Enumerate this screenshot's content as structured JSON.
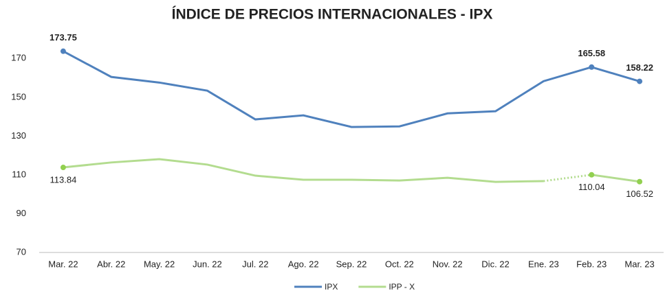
{
  "chart_data": {
    "type": "line",
    "title": "ÍNDICE DE PRECIOS INTERNACIONALES - IPX",
    "categories": [
      "Mar. 22",
      "Abr. 22",
      "May. 22",
      "Jun. 22",
      "Jul. 22",
      "Ago. 22",
      "Sep. 22",
      "Oct. 22",
      "Nov. 22",
      "Dic. 22",
      "Ene. 23",
      "Feb. 23",
      "Mar. 23"
    ],
    "series": [
      {
        "name": "IPX",
        "color": "#4f81bd",
        "values": [
          173.75,
          160.5,
          157.6,
          153.4,
          138.6,
          140.7,
          134.7,
          135.0,
          141.7,
          142.8,
          158.3,
          165.58,
          158.22
        ],
        "value_labels": [
          "173.75",
          null,
          null,
          null,
          null,
          null,
          null,
          null,
          null,
          null,
          null,
          "165.58",
          "158.22"
        ],
        "label_position": "above"
      },
      {
        "name": "IPP - X",
        "color": "#b3dc8f",
        "marker_color": "#92d050",
        "values": [
          113.84,
          116.4,
          118.1,
          115.3,
          109.6,
          107.5,
          107.5,
          107.1,
          108.5,
          106.4,
          106.8,
          110.04,
          106.52
        ],
        "value_labels": [
          "113.84",
          null,
          null,
          null,
          null,
          null,
          null,
          null,
          null,
          null,
          null,
          "110.04",
          "106.52"
        ],
        "label_position": "below",
        "dotted_from": "Ene. 23"
      }
    ],
    "ylim": [
      70,
      180
    ],
    "yticks": [
      70,
      90,
      110,
      130,
      150,
      170
    ],
    "grid": false,
    "legend": "bottom"
  }
}
